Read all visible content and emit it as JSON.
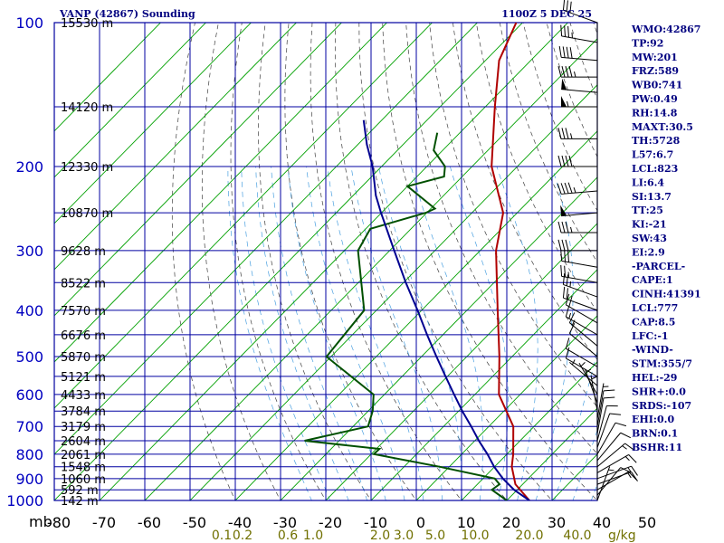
{
  "header": {
    "title": "VANP (42867) Sounding",
    "time": "1100Z  5 DEC 25"
  },
  "indices": [
    "WMO:42867",
    "TP:92",
    "MW:201",
    "FRZ:589",
    "WB0:741",
    "PW:0.49",
    "RH:14.8",
    "MAXT:30.5",
    "TH:5728",
    "L57:6.7",
    "LCL:823",
    "LI:6.4",
    "SI:13.7",
    "TT:25",
    "KI:-21",
    "SW:43",
    "EI:2.9",
    "-PARCEL-",
    "CAPE:1",
    "CINH:41391",
    "LCL:777",
    "CAP:8.5",
    "LFC:-1",
    "-WIND-",
    "STM:355/7",
    "HEL:-29",
    "SHR+:0.0",
    "SRDS:-107",
    "EHI:0.0",
    "BRN:0.1",
    "BSHR:11"
  ],
  "chart_data": {
    "type": "line",
    "title": "VANP (42867) Sounding",
    "pressure_unit": "mb",
    "mixing_ratio_unit": "g/kg",
    "x_ticks": [
      "-80",
      "-70",
      "-60",
      "-50",
      "-40",
      "-30",
      "-20",
      "-10",
      "0",
      "10",
      "20",
      "30",
      "40",
      "50"
    ],
    "pressure_ticks": [
      "100",
      "200",
      "300",
      "400",
      "500",
      "600",
      "700",
      "800",
      "900",
      "1000"
    ],
    "height_labels": [
      {
        "label": "15530 m",
        "p": 100
      },
      {
        "label": "14120 m",
        "p": 150
      },
      {
        "label": "12330 m",
        "p": 200
      },
      {
        "label": "10870 m",
        "p": 250
      },
      {
        "label": "9628 m",
        "p": 300
      },
      {
        "label": "8522 m",
        "p": 350
      },
      {
        "label": "7570 m",
        "p": 400
      },
      {
        "label": "6676 m",
        "p": 450
      },
      {
        "label": "5870 m",
        "p": 500
      },
      {
        "label": "5121 m",
        "p": 550
      },
      {
        "label": "4433 m",
        "p": 600
      },
      {
        "label": "3784 m",
        "p": 650
      },
      {
        "label": "3179 m",
        "p": 700
      },
      {
        "label": "2604 m",
        "p": 750
      },
      {
        "label": "2061 m",
        "p": 800
      },
      {
        "label": "1548 m",
        "p": 850
      },
      {
        "label": "1060 m",
        "p": 900
      },
      {
        "label": "592 m",
        "p": 950
      },
      {
        "label": "142 m",
        "p": 1000
      }
    ],
    "mixing_ratio_labels": [
      "0.1",
      "0.2",
      "0.6",
      "1.0",
      "2.0",
      "3.0",
      "5.0",
      "10.0",
      "20.0",
      "40.0"
    ],
    "series": [
      {
        "type": "temperature",
        "color": "#b00000",
        "p": [
          1000,
          925,
          850,
          800,
          700,
          600,
          500,
          400,
          300,
          250,
          200,
          150,
          120,
          100
        ],
        "t": [
          25.0,
          18.4,
          13.8,
          11.4,
          5.4,
          -4.7,
          -12.8,
          -23.2,
          -36.5,
          -43.1,
          -55.7,
          -67.9,
          -77.0,
          -81.4
        ]
      },
      {
        "type": "dewpoint",
        "color": "#005000",
        "p": [
          1000,
          950,
          925,
          900,
          850,
          800,
          780,
          750,
          700,
          650,
          600,
          500,
          400,
          300,
          270,
          250,
          245,
          220,
          210,
          200,
          185,
          170
        ],
        "t": [
          20.0,
          14.4,
          14.9,
          12.6,
          -2.2,
          -19.4,
          -19.3,
          -37.6,
          -26.7,
          -29.0,
          -32.4,
          -51.0,
          -52.7,
          -67.0,
          -69.0,
          -60.2,
          -59.1,
          -70.0,
          -64.0,
          -66.0,
          -72.0,
          -75.0
        ]
      },
      {
        "type": "parcel",
        "color": "#000090",
        "p": [
          1000,
          950,
          900,
          850,
          800,
          750,
          700,
          650,
          600,
          550,
          500,
          450,
          400,
          350,
          300,
          250,
          230,
          200,
          180,
          160
        ],
        "t": [
          25.0,
          19.3,
          14.4,
          9.9,
          5.7,
          0.9,
          -3.9,
          -9.2,
          -14.6,
          -20.4,
          -26.7,
          -33.5,
          -40.9,
          -49.5,
          -59.0,
          -70.1,
          -75.0,
          -82.0,
          -88.0,
          -94.0
        ]
      }
    ],
    "wind_barbs": [
      {
        "p": 1000,
        "dir": 20,
        "spd": 5
      },
      {
        "p": 975,
        "dir": 40,
        "spd": 10
      },
      {
        "p": 950,
        "dir": 60,
        "spd": 10
      },
      {
        "p": 925,
        "dir": 70,
        "spd": 15
      },
      {
        "p": 900,
        "dir": 70,
        "spd": 15
      },
      {
        "p": 875,
        "dir": 60,
        "spd": 15
      },
      {
        "p": 850,
        "dir": 50,
        "spd": 15
      },
      {
        "p": 825,
        "dir": 40,
        "spd": 10
      },
      {
        "p": 800,
        "dir": 30,
        "spd": 10
      },
      {
        "p": 775,
        "dir": 20,
        "spd": 10
      },
      {
        "p": 750,
        "dir": 15,
        "spd": 10
      },
      {
        "p": 725,
        "dir": 10,
        "spd": 10
      },
      {
        "p": 700,
        "dir": 10,
        "spd": 10
      },
      {
        "p": 675,
        "dir": 10,
        "spd": 5
      },
      {
        "p": 650,
        "dir": 350,
        "spd": 5
      },
      {
        "p": 625,
        "dir": 340,
        "spd": 5
      },
      {
        "p": 600,
        "dir": 330,
        "spd": 5
      },
      {
        "p": 575,
        "dir": 310,
        "spd": 5
      },
      {
        "p": 550,
        "dir": 300,
        "spd": 10
      },
      {
        "p": 525,
        "dir": 300,
        "spd": 10
      },
      {
        "p": 500,
        "dir": 310,
        "spd": 10
      },
      {
        "p": 475,
        "dir": 310,
        "spd": 15
      },
      {
        "p": 450,
        "dir": 300,
        "spd": 15
      },
      {
        "p": 425,
        "dir": 300,
        "spd": 20
      },
      {
        "p": 400,
        "dir": 290,
        "spd": 20
      },
      {
        "p": 375,
        "dir": 290,
        "spd": 25
      },
      {
        "p": 350,
        "dir": 280,
        "spd": 25
      },
      {
        "p": 325,
        "dir": 280,
        "spd": 30
      },
      {
        "p": 300,
        "dir": 270,
        "spd": 30
      },
      {
        "p": 275,
        "dir": 270,
        "spd": 35
      },
      {
        "p": 250,
        "dir": 265,
        "spd": 50
      },
      {
        "p": 225,
        "dir": 265,
        "spd": 45
      },
      {
        "p": 200,
        "dir": 270,
        "spd": 40
      },
      {
        "p": 175,
        "dir": 270,
        "spd": 35
      },
      {
        "p": 150,
        "dir": 270,
        "spd": 55
      },
      {
        "p": 140,
        "dir": 275,
        "spd": 50
      },
      {
        "p": 130,
        "dir": 270,
        "spd": 45
      },
      {
        "p": 120,
        "dir": 275,
        "spd": 40
      },
      {
        "p": 110,
        "dir": 280,
        "spd": 35
      },
      {
        "p": 100,
        "dir": 290,
        "spd": 30
      }
    ]
  }
}
